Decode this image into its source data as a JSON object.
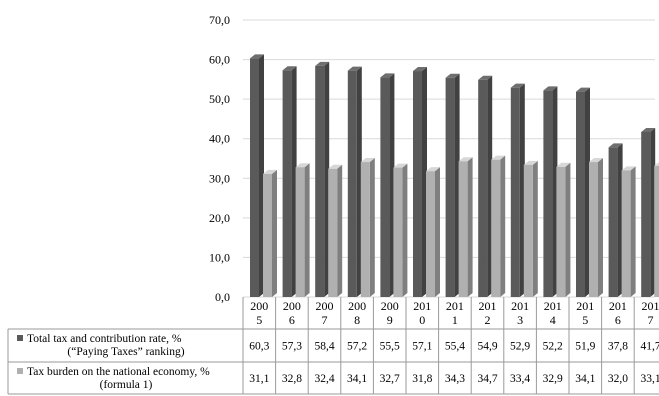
{
  "chart_data": {
    "type": "bar",
    "categories": [
      [
        "200",
        "5"
      ],
      [
        "200",
        "6"
      ],
      [
        "200",
        "7"
      ],
      [
        "200",
        "8"
      ],
      [
        "200",
        "9"
      ],
      [
        "201",
        "0"
      ],
      [
        "201",
        "1"
      ],
      [
        "201",
        "2"
      ],
      [
        "201",
        "3"
      ],
      [
        "201",
        "4"
      ],
      [
        "201",
        "5"
      ],
      [
        "201",
        "6"
      ],
      [
        "201",
        "7"
      ]
    ],
    "series": [
      {
        "name": [
          "Total tax and contribution rate, %",
          "(“Paying Taxes” ranking)"
        ],
        "color": "#5a5a5a",
        "values": [
          60.3,
          57.3,
          58.4,
          57.2,
          55.5,
          57.1,
          55.4,
          54.9,
          52.9,
          52.2,
          51.9,
          37.8,
          41.7
        ],
        "labels": [
          "60,3",
          "57,3",
          "58,4",
          "57,2",
          "55,5",
          "57,1",
          "55,4",
          "54,9",
          "52,9",
          "52,2",
          "51,9",
          "37,8",
          "41,7"
        ]
      },
      {
        "name": [
          "Tax burden on the national economy, %",
          "(formula 1)"
        ],
        "color": "#b0b0b0",
        "values": [
          31.1,
          32.8,
          32.4,
          34.1,
          32.7,
          31.8,
          34.3,
          34.7,
          33.4,
          32.9,
          34.1,
          32.0,
          33.1
        ],
        "labels": [
          "31,1",
          "32,8",
          "32,4",
          "34,1",
          "32,7",
          "31,8",
          "34,3",
          "34,7",
          "33,4",
          "32,9",
          "34,1",
          "32,0",
          "33,1"
        ]
      }
    ],
    "y_ticks": [
      "0,0",
      "10,0",
      "20,0",
      "30,0",
      "40,0",
      "50,0",
      "60,0",
      "70,0"
    ],
    "ylim": [
      0,
      70
    ],
    "grid": true,
    "legend": "data-table"
  }
}
